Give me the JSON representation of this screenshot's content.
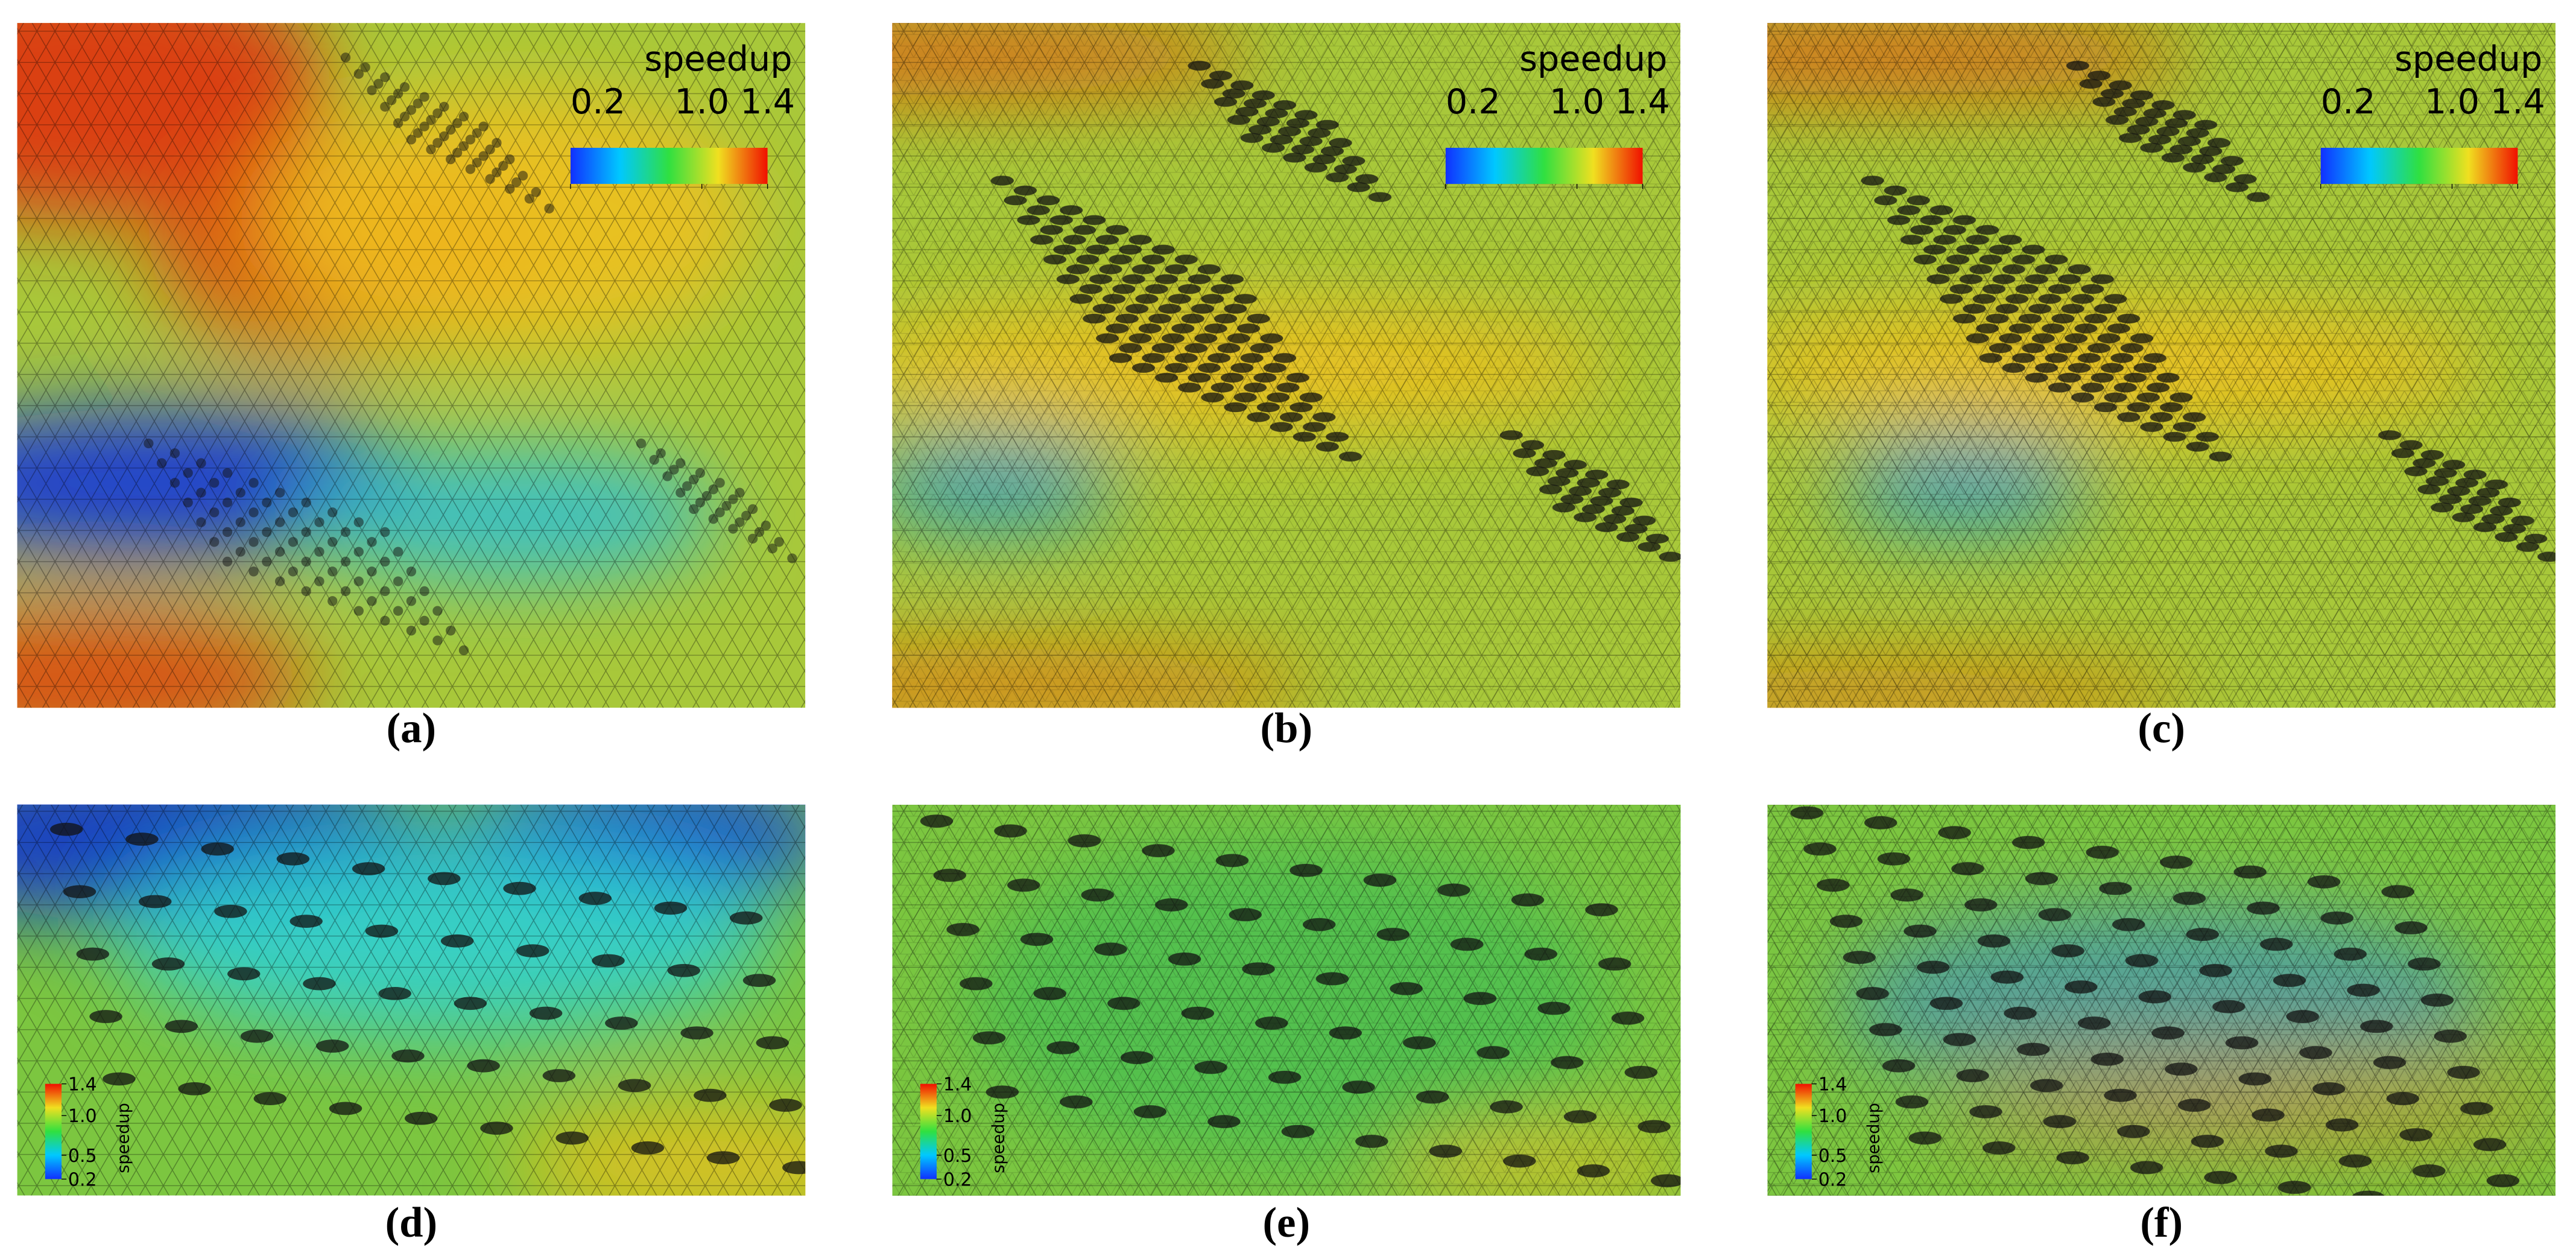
{
  "panels": [
    {
      "label": "(a)",
      "colorbar": {
        "title": "speedup",
        "orientation": "horizontal",
        "ticks": [
          0.2,
          {
            "value": 1,
            "label": "1.0"
          },
          1.4
        ]
      }
    },
    {
      "label": "(b)",
      "colorbar": {
        "title": "speedup",
        "orientation": "horizontal",
        "ticks": [
          0.2,
          {
            "value": 1,
            "label": "1.0"
          },
          1.4
        ]
      }
    },
    {
      "label": "(c)",
      "colorbar": {
        "title": "speedup",
        "orientation": "horizontal",
        "ticks": [
          0.2,
          {
            "value": 1,
            "label": "1.0"
          },
          1.4
        ]
      }
    },
    {
      "label": "(d)",
      "colorbar": {
        "title": "speedup",
        "orientation": "vertical",
        "ticks": [
          1.4,
          {
            "value": 1,
            "label": "1.0"
          },
          0.5,
          0.2
        ]
      }
    },
    {
      "label": "(e)",
      "colorbar": {
        "title": "speedup",
        "orientation": "vertical",
        "ticks": [
          1.4,
          {
            "value": 1,
            "label": "1.0"
          },
          0.5,
          0.2
        ]
      }
    },
    {
      "label": "(f)",
      "colorbar": {
        "title": "speedup",
        "orientation": "vertical",
        "ticks": [
          1.4,
          {
            "value": 1,
            "label": "1.0"
          },
          0.5,
          0.2
        ]
      }
    }
  ]
}
